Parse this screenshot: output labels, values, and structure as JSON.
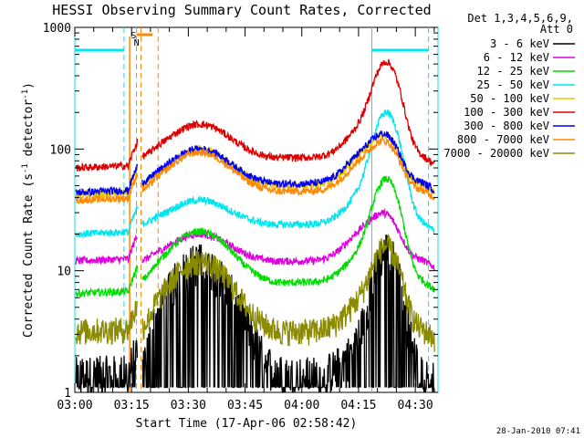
{
  "chart_data": {
    "type": "line",
    "title": "HESSI Observing Summary Count Rates, Corrected",
    "xlabel": "Start Time (17-Apr-06 02:58:42)",
    "ylabel": "Corrected Count Rate (s⁻¹ detector⁻¹)",
    "ylabel_main": "Corrected Count Rate (s",
    "ylabel_sup1": "-1",
    "ylabel_mid": " detector",
    "ylabel_sup2": "-1",
    "ylabel_end": ")",
    "y_scale": "log",
    "ylim": [
      1,
      1000
    ],
    "xlim_minutes_from_0300": [
      0,
      96
    ],
    "x_ticks": [
      {
        "label": "03:00",
        "minute": 0
      },
      {
        "label": "03:15",
        "minute": 15
      },
      {
        "label": "03:30",
        "minute": 30
      },
      {
        "label": "03:45",
        "minute": 45
      },
      {
        "label": "04:00",
        "minute": 60
      },
      {
        "label": "04:15",
        "minute": 75
      },
      {
        "label": "04:30",
        "minute": 90
      }
    ],
    "y_ticks": [
      {
        "label": "1",
        "value": 1
      },
      {
        "label": "10",
        "value": 10
      },
      {
        "label": "100",
        "value": 100
      },
      {
        "label": "1000",
        "value": 1000
      }
    ],
    "legend_header": [
      "Det 1,3,4,5,6,9,",
      "Att 0"
    ],
    "legend_position": "right",
    "series": [
      {
        "name": "3 - 6 keV",
        "color": "#000000",
        "base": 1.4,
        "dip": 1.4,
        "sun1": 12,
        "flare": 14,
        "floor": 1.1
      },
      {
        "name": "6 - 12 keV",
        "color": "#e000e0",
        "base": 12,
        "dip": 12,
        "sun1": 20,
        "flare": 22,
        "floor": 10
      },
      {
        "name": "12 - 25 keV",
        "color": "#00dd00",
        "base": 6.5,
        "dip": 8,
        "sun1": 21,
        "flare": 52,
        "floor": 6
      },
      {
        "name": "25 - 50 keV",
        "color": "#00e5ee",
        "base": 20,
        "dip": 24,
        "sun1": 38,
        "flare": 185,
        "floor": 18
      },
      {
        "name": "50 - 100 keV",
        "color": "#e8c800",
        "base": 42,
        "dip": 50,
        "sun1": 100,
        "flare": 100,
        "floor": 40
      },
      {
        "name": "100 - 300 keV",
        "color": "#dd0000",
        "base": 70,
        "dip": 85,
        "sun1": 160,
        "flare": 470,
        "floor": 65
      },
      {
        "name": "300 - 800 keV",
        "color": "#0000ee",
        "base": 44,
        "dip": 52,
        "sun1": 100,
        "flare": 100,
        "floor": 42
      },
      {
        "name": "800 - 7000 keV",
        "color": "#ff8800",
        "base": 38,
        "dip": 45,
        "sun1": 94,
        "flare": 88,
        "floor": 36
      },
      {
        "name": "7000 - 20000 keV",
        "color": "#8b8b00",
        "base": 3.2,
        "dip": 3.2,
        "sun1": 12,
        "flare": 14,
        "floor": 2.5
      }
    ],
    "annotations": {
      "flags_label_s": "S",
      "flags_label_n": "N",
      "night_bar_value": 650,
      "saa_color": "#ff8800",
      "night_color": "#00e5ee",
      "cyan_vertical_minutes": [
        0,
        78.5,
        96
      ],
      "cyan_dashed_minutes": [
        13,
        93.5
      ],
      "orange_solid_minute": 14.5,
      "orange_dashed_minutes": [
        16.3,
        17.5,
        22
      ]
    },
    "timestamp": "28-Jan-2010 07:41"
  }
}
